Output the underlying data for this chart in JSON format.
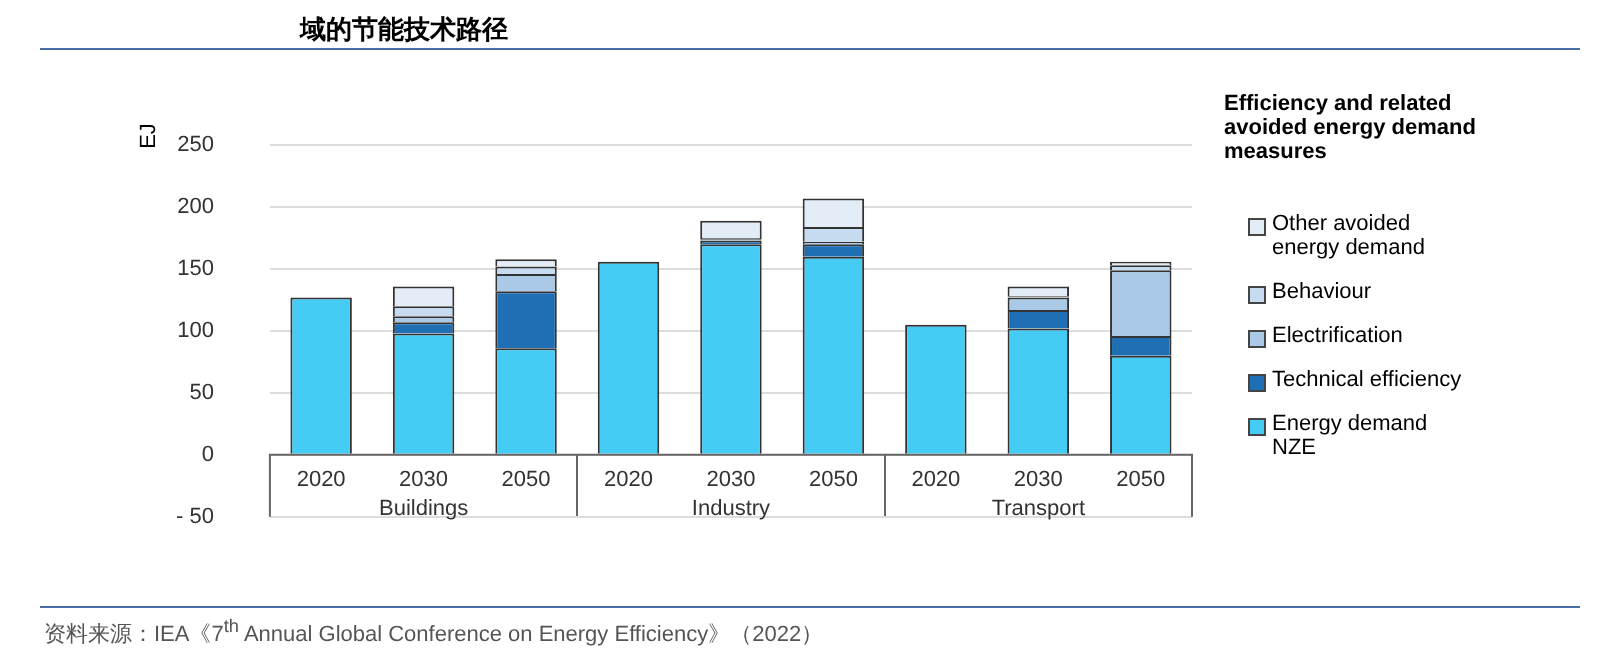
{
  "chart_data": {
    "type": "bar",
    "title": "域的节能技术路径",
    "ylabel": "EJ",
    "stacked": true,
    "categories": [
      "2020",
      "2030",
      "2050",
      "2020",
      "2030",
      "2050",
      "2020",
      "2030",
      "2050"
    ],
    "series": [
      {
        "name": "Energy demand NZE",
        "color": "#44ccf5",
        "values": [
          127,
          98,
          86,
          156,
          170,
          160,
          105,
          102,
          80
        ]
      },
      {
        "name": "Technical efficiency",
        "color": "#1f6fb4",
        "values": [
          null,
          9,
          46,
          null,
          3,
          10,
          null,
          15,
          16
        ]
      },
      {
        "name": "Electrification",
        "color": "#a9c9e6",
        "values": [
          null,
          5,
          14,
          null,
          1,
          2,
          null,
          10,
          53
        ]
      },
      {
        "name": "Behaviour",
        "color": "#c6daf0",
        "values": [
          null,
          8,
          6,
          null,
          1,
          12,
          null,
          1,
          4
        ]
      },
      {
        "name": "Other avoided energy demand",
        "color": "#e2edf8",
        "values": [
          null,
          16,
          6,
          null,
          14,
          23,
          null,
          8,
          3
        ]
      }
    ],
    "ylim": [
      -50,
      250
    ],
    "yticks": [
      {
        "value": -50,
        "label": "- 50"
      },
      0,
      50,
      100,
      150,
      200,
      250
    ],
    "grid": "y",
    "legend": "right",
    "legend_title": "Efficiency and related avoided energy demand measures",
    "annotations": [
      "Buildings",
      "Industry",
      "Transport",
      "资料来源：IEA《7$^{th}$ Annual Global Conference on Energy Efficiency》（2022）"
    ]
  }
}
